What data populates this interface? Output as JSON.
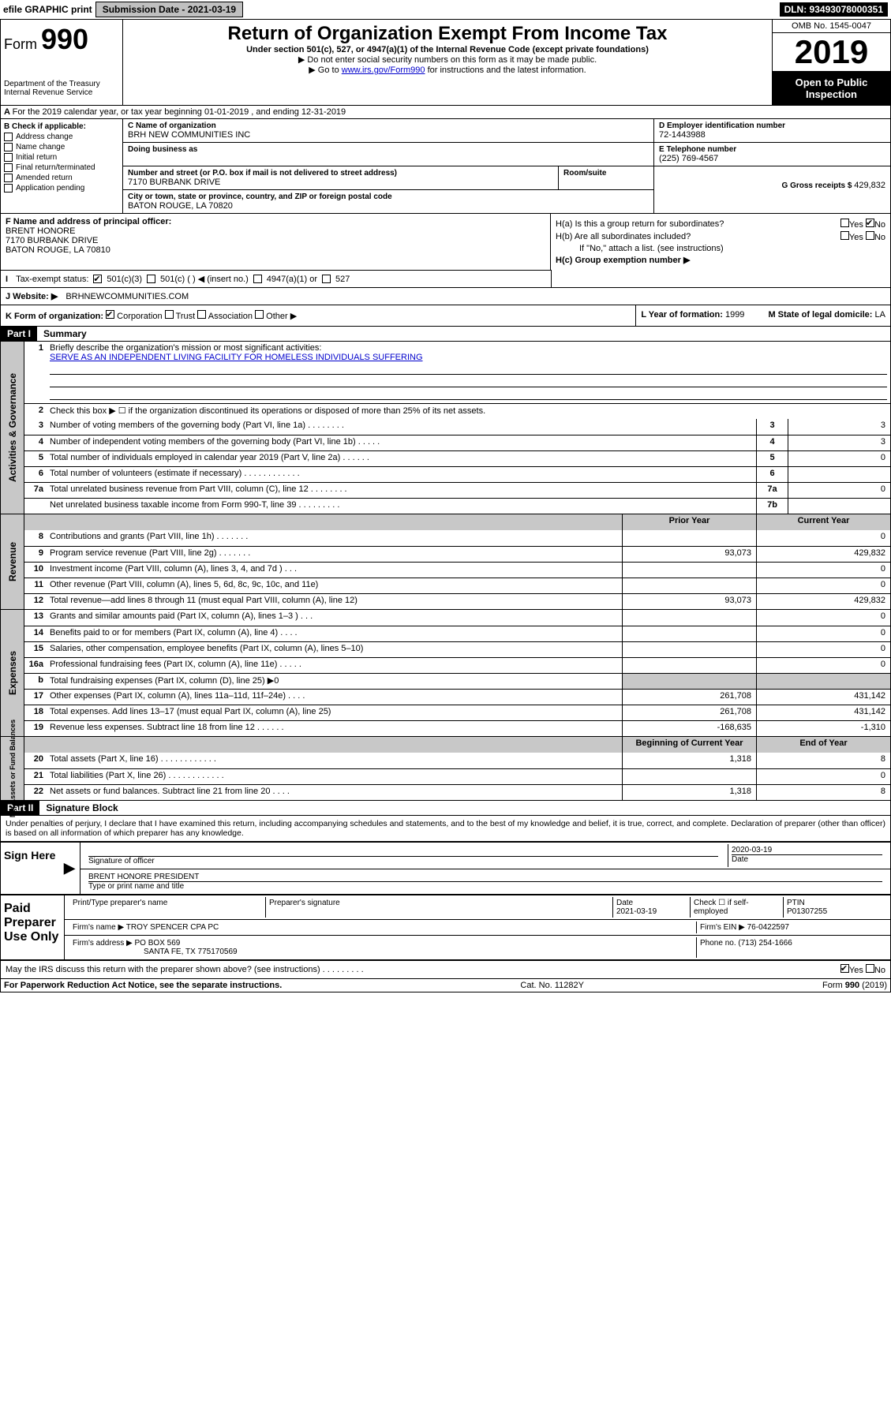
{
  "topbar": {
    "efile": "efile GRAPHIC print",
    "sub_label": "Submission Date - 2021-03-19",
    "dln": "DLN: 93493078000351"
  },
  "header": {
    "form_label": "Form",
    "form_num": "990",
    "dept": "Department of the Treasury",
    "irs": "Internal Revenue Service",
    "title": "Return of Organization Exempt From Income Tax",
    "sub1": "Under section 501(c), 527, or 4947(a)(1) of the Internal Revenue Code (except private foundations)",
    "sub2": "▶ Do not enter social security numbers on this form as it may be made public.",
    "sub3_pre": "▶ Go to ",
    "sub3_link": "www.irs.gov/Form990",
    "sub3_post": " for instructions and the latest information.",
    "omb": "OMB No. 1545-0047",
    "year": "2019",
    "open": "Open to Public Inspection"
  },
  "a_line": "For the 2019 calendar year, or tax year beginning 01-01-2019   , and ending 12-31-2019",
  "b": {
    "label": "B Check if applicable:",
    "items": [
      "Address change",
      "Name change",
      "Initial return",
      "Final return/terminated",
      "Amended return",
      "Application pending"
    ]
  },
  "c": {
    "name_label": "C Name of organization",
    "name": "BRH NEW COMMUNITIES INC",
    "dba_label": "Doing business as",
    "addr_label": "Number and street (or P.O. box if mail is not delivered to street address)",
    "room_label": "Room/suite",
    "addr": "7170 BURBANK DRIVE",
    "city_label": "City or town, state or province, country, and ZIP or foreign postal code",
    "city": "BATON ROUGE, LA  70820"
  },
  "d": {
    "label": "D Employer identification number",
    "val": "72-1443988"
  },
  "e": {
    "label": "E Telephone number",
    "val": "(225) 769-4567"
  },
  "g": {
    "label": "G Gross receipts $",
    "val": "429,832"
  },
  "f": {
    "label": "F  Name and address of principal officer:",
    "name": "BRENT HONORE",
    "addr1": "7170 BURBANK DRIVE",
    "addr2": "BATON ROUGE, LA  70810"
  },
  "h": {
    "a_label": "H(a)  Is this a group return for subordinates?",
    "b_label": "H(b)  Are all subordinates included?",
    "b_note": "If \"No,\" attach a list. (see instructions)",
    "c_label": "H(c)  Group exemption number ▶",
    "yes": "Yes",
    "no": "No"
  },
  "i": {
    "label": "Tax-exempt status:",
    "opt1": "501(c)(3)",
    "opt2": "501(c) (   ) ◀ (insert no.)",
    "opt3": "4947(a)(1) or",
    "opt4": "527"
  },
  "j": {
    "label": "J   Website: ▶",
    "val": "BRHNEWCOMMUNITIES.COM"
  },
  "k": {
    "label": "K Form of organization:",
    "opts": [
      "Corporation",
      "Trust",
      "Association",
      "Other ▶"
    ],
    "l_label": "L Year of formation:",
    "l_val": "1999",
    "m_label": "M State of legal domicile:",
    "m_val": "LA"
  },
  "part1": {
    "header": "Part I",
    "title": "Summary",
    "mission_label": "Briefly describe the organization's mission or most significant activities:",
    "mission": "SERVE AS AN INDEPENDENT LIVING FACILITY FOR HOMELESS INDIVIDUALS SUFFERING",
    "line2": "Check this box ▶ ☐  if the organization discontinued its operations or disposed of more than 25% of its net assets.",
    "governance_label": "Activities & Governance",
    "revenue_label": "Revenue",
    "expenses_label": "Expenses",
    "netassets_label": "Net Assets or Fund Balances",
    "lines_gov": [
      {
        "n": "3",
        "d": "Number of voting members of the governing body (Part VI, line 1a)    .    .    .    .    .    .    .    .",
        "b": "3",
        "v": "3"
      },
      {
        "n": "4",
        "d": "Number of independent voting members of the governing body (Part VI, line 1b)   .    .    .    .    .",
        "b": "4",
        "v": "3"
      },
      {
        "n": "5",
        "d": "Total number of individuals employed in calendar year 2019 (Part V, line 2a)   .    .    .    .    .    .",
        "b": "5",
        "v": "0"
      },
      {
        "n": "6",
        "d": "Total number of volunteers (estimate if necessary)    .    .    .    .    .    .    .    .    .    .    .    .",
        "b": "6",
        "v": ""
      },
      {
        "n": "7a",
        "d": "Total unrelated business revenue from Part VIII, column (C), line 12   .    .    .    .    .    .    .    .",
        "b": "7a",
        "v": "0"
      },
      {
        "n": "",
        "d": "Net unrelated business taxable income from Form 990-T, line 39    .    .    .    .    .    .    .    .    .",
        "b": "7b",
        "v": ""
      }
    ],
    "col_prior": "Prior Year",
    "col_current": "Current Year",
    "lines_rev": [
      {
        "n": "8",
        "d": "Contributions and grants (Part VIII, line 1h)   .    .    .    .    .    .    .",
        "p": "",
        "c": "0"
      },
      {
        "n": "9",
        "d": "Program service revenue (Part VIII, line 2g)   .    .    .    .    .    .    .",
        "p": "93,073",
        "c": "429,832"
      },
      {
        "n": "10",
        "d": "Investment income (Part VIII, column (A), lines 3, 4, and 7d )   .    .    .",
        "p": "",
        "c": "0"
      },
      {
        "n": "11",
        "d": "Other revenue (Part VIII, column (A), lines 5, 6d, 8c, 9c, 10c, and 11e)",
        "p": "",
        "c": "0"
      },
      {
        "n": "12",
        "d": "Total revenue—add lines 8 through 11 (must equal Part VIII, column (A), line 12)",
        "p": "93,073",
        "c": "429,832"
      }
    ],
    "lines_exp": [
      {
        "n": "13",
        "d": "Grants and similar amounts paid (Part IX, column (A), lines 1–3 )   .    .    .",
        "p": "",
        "c": "0"
      },
      {
        "n": "14",
        "d": "Benefits paid to or for members (Part IX, column (A), line 4)   .    .    .    .",
        "p": "",
        "c": "0"
      },
      {
        "n": "15",
        "d": "Salaries, other compensation, employee benefits (Part IX, column (A), lines 5–10)",
        "p": "",
        "c": "0"
      },
      {
        "n": "16a",
        "d": "Professional fundraising fees (Part IX, column (A), line 11e)   .    .    .    .    .",
        "p": "",
        "c": "0"
      },
      {
        "n": "b",
        "d": "Total fundraising expenses (Part IX, column (D), line 25) ▶0",
        "p": "__SHADE__",
        "c": "__SHADE__"
      },
      {
        "n": "17",
        "d": "Other expenses (Part IX, column (A), lines 11a–11d, 11f–24e)   .    .    .    .",
        "p": "261,708",
        "c": "431,142"
      },
      {
        "n": "18",
        "d": "Total expenses. Add lines 13–17 (must equal Part IX, column (A), line 25)",
        "p": "261,708",
        "c": "431,142"
      },
      {
        "n": "19",
        "d": "Revenue less expenses. Subtract line 18 from line 12   .    .    .    .    .    .",
        "p": "-168,635",
        "c": "-1,310"
      }
    ],
    "col_begin": "Beginning of Current Year",
    "col_end": "End of Year",
    "lines_net": [
      {
        "n": "20",
        "d": "Total assets (Part X, line 16)   .    .    .    .    .    .    .    .    .    .    .    .",
        "p": "1,318",
        "c": "8"
      },
      {
        "n": "21",
        "d": "Total liabilities (Part X, line 26)   .    .    .    .    .    .    .    .    .    .    .    .",
        "p": "",
        "c": "0"
      },
      {
        "n": "22",
        "d": "Net assets or fund balances. Subtract line 21 from line 20   .    .    .    .",
        "p": "1,318",
        "c": "8"
      }
    ]
  },
  "part2": {
    "header": "Part II",
    "title": "Signature Block",
    "perjury": "Under penalties of perjury, I declare that I have examined this return, including accompanying schedules and statements, and to the best of my knowledge and belief, it is true, correct, and complete. Declaration of preparer (other than officer) is based on all information of which preparer has any knowledge.",
    "sign_here": "Sign Here",
    "sig_officer": "Signature of officer",
    "sig_date": "2020-03-19",
    "date_label": "Date",
    "officer_name": "BRENT HONORE  PRESIDENT",
    "type_name": "Type or print name and title",
    "paid": "Paid Preparer Use Only",
    "pp_name_label": "Print/Type preparer's name",
    "pp_sig_label": "Preparer's signature",
    "pp_date": "2021-03-19",
    "check_label": "Check ☐ if self-employed",
    "ptin_label": "PTIN",
    "ptin": "P01307255",
    "firm_name_label": "Firm's name    ▶",
    "firm_name": "TROY SPENCER CPA PC",
    "firm_ein_label": "Firm's EIN ▶",
    "firm_ein": "76-0422597",
    "firm_addr_label": "Firm's address ▶",
    "firm_addr1": "PO BOX 569",
    "firm_addr2": "SANTA FE, TX  775170569",
    "firm_phone_label": "Phone no.",
    "firm_phone": "(713) 254-1666",
    "discuss": "May the IRS discuss this return with the preparer shown above? (see instructions)    .    .    .    .    .    .    .    .    .",
    "yes": "Yes",
    "no": "No"
  },
  "footer": {
    "pra": "For Paperwork Reduction Act Notice, see the separate instructions.",
    "cat": "Cat. No. 11282Y",
    "form": "Form 990 (2019)"
  }
}
